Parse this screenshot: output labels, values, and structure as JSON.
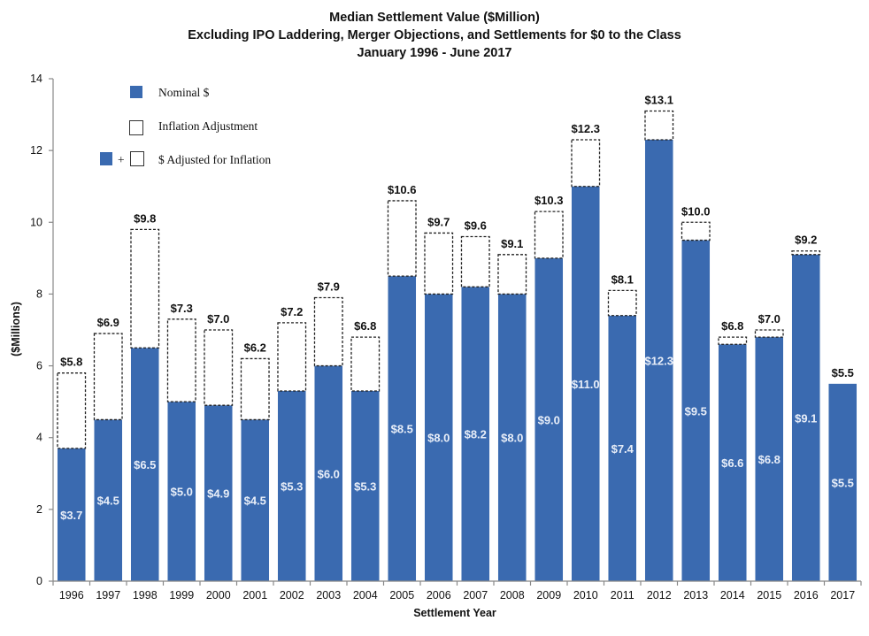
{
  "chart_data": {
    "type": "bar",
    "stacked": true,
    "title": "Median Settlement Value ($Million)",
    "subtitle": "Excluding IPO Laddering, Merger Objections, and Settlements for $0 to the Class",
    "date_range": "January 1996 - June 2017",
    "xlabel": "Settlement Year",
    "ylabel": "($Millions)",
    "ylim": [
      0,
      14
    ],
    "yticks": [
      "0",
      "2",
      "4",
      "6",
      "8",
      "10",
      "12",
      "14"
    ],
    "grid": false,
    "legend_position": "top-left",
    "legend": {
      "nominal": "Nominal $",
      "inflation_adjustment": "Inflation Adjustment",
      "combined": "$ Adjusted for Inflation",
      "plus": "+"
    },
    "colors": {
      "nominal": "#3a6ab0",
      "adjustment_fill": "#ffffff",
      "adjustment_border": "#222222"
    },
    "categories": [
      "1996",
      "1997",
      "1998",
      "1999",
      "2000",
      "2001",
      "2002",
      "2003",
      "2004",
      "2005",
      "2006",
      "2007",
      "2008",
      "2009",
      "2010",
      "2011",
      "2012",
      "2013",
      "2014",
      "2015",
      "2016",
      "2017"
    ],
    "series": [
      {
        "name": "Nominal $",
        "values": [
          3.7,
          4.5,
          6.5,
          5.0,
          4.9,
          4.5,
          5.3,
          6.0,
          5.3,
          8.5,
          8.0,
          8.2,
          8.0,
          9.0,
          11.0,
          7.4,
          12.3,
          9.5,
          6.6,
          6.8,
          9.1,
          5.5
        ]
      },
      {
        "name": "$ Adjusted for Inflation",
        "values": [
          5.8,
          6.9,
          9.8,
          7.3,
          7.0,
          6.2,
          7.2,
          7.9,
          6.8,
          10.6,
          9.7,
          9.6,
          9.1,
          10.3,
          12.3,
          8.1,
          13.1,
          10.0,
          6.8,
          7.0,
          9.2,
          5.5
        ]
      }
    ],
    "nominal_labels": [
      "$3.7",
      "$4.5",
      "$6.5",
      "$5.0",
      "$4.9",
      "$4.5",
      "$5.3",
      "$6.0",
      "$5.3",
      "$8.5",
      "$8.0",
      "$8.2",
      "$8.0",
      "$9.0",
      "$11.0",
      "$7.4",
      "$12.3",
      "$9.5",
      "$6.6",
      "$6.8",
      "$9.1",
      "$5.5"
    ],
    "adjusted_labels": [
      "$5.8",
      "$6.9",
      "$9.8",
      "$7.3",
      "$7.0",
      "$6.2",
      "$7.2",
      "$7.9",
      "$6.8",
      "$10.6",
      "$9.7",
      "$9.6",
      "$9.1",
      "$10.3",
      "$12.3",
      "$8.1",
      "$13.1",
      "$10.0",
      "$6.8",
      "$7.0",
      "$9.2",
      "$5.5"
    ]
  }
}
